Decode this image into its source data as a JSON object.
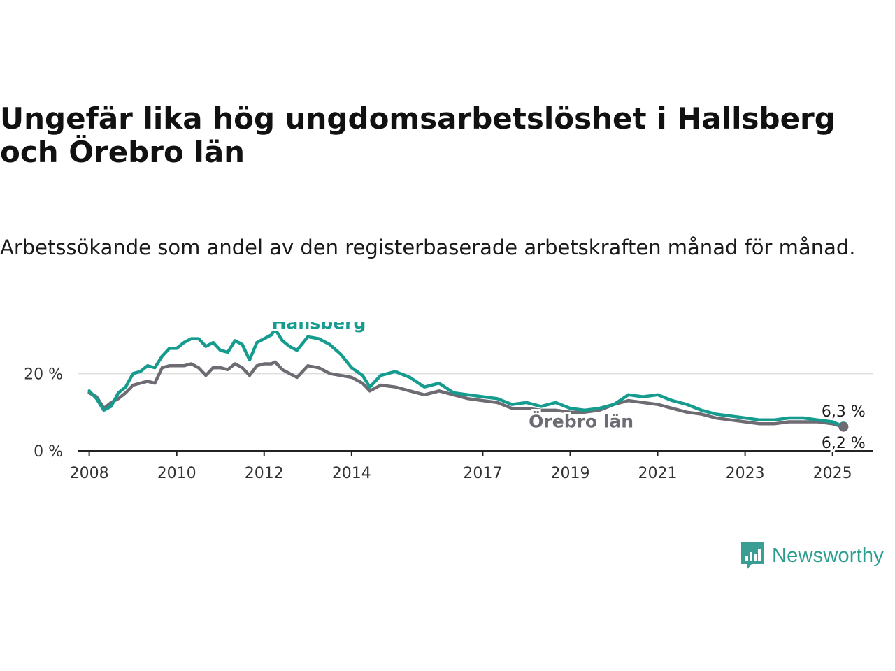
{
  "title": "Ungefär lika hög ungdomsarbetslöshet i Hallsberg och Örebro län",
  "subtitle": "Arbetssökande som andel av den registerbaserade arbetskraften månad för månad.",
  "logo": {
    "text": "Newsworthy",
    "icon": "newsworthy-chart-icon",
    "color": "#3a9e95"
  },
  "chart_data": {
    "type": "line",
    "x_ticks": [
      "2008",
      "2010",
      "2012",
      "2014",
      "2017",
      "2019",
      "2021",
      "2023",
      "2025"
    ],
    "y_ticks": [
      "0 %",
      "20 %"
    ],
    "ylim": [
      0,
      32
    ],
    "xlim": [
      "2007-10",
      "2025-12"
    ],
    "grid": true,
    "series": [
      {
        "name": "Hallsberg",
        "color": "#169c8f",
        "end_label": "6,3 %",
        "points": [
          [
            "2008-01",
            15.5
          ],
          [
            "2008-03",
            13.5
          ],
          [
            "2008-05",
            10.5
          ],
          [
            "2008-07",
            11.5
          ],
          [
            "2008-09",
            15.0
          ],
          [
            "2008-11",
            16.5
          ],
          [
            "2009-01",
            20.0
          ],
          [
            "2009-03",
            20.5
          ],
          [
            "2009-05",
            22.0
          ],
          [
            "2009-07",
            21.5
          ],
          [
            "2009-09",
            24.5
          ],
          [
            "2009-11",
            26.5
          ],
          [
            "2010-01",
            26.5
          ],
          [
            "2010-03",
            28.0
          ],
          [
            "2010-05",
            29.0
          ],
          [
            "2010-07",
            29.0
          ],
          [
            "2010-09",
            27.0
          ],
          [
            "2010-11",
            28.0
          ],
          [
            "2011-01",
            26.0
          ],
          [
            "2011-03",
            25.5
          ],
          [
            "2011-05",
            28.5
          ],
          [
            "2011-07",
            27.5
          ],
          [
            "2011-09",
            23.5
          ],
          [
            "2011-11",
            28.0
          ],
          [
            "2012-01",
            29.0
          ],
          [
            "2012-03",
            30.0
          ],
          [
            "2012-04",
            31.5
          ],
          [
            "2012-06",
            28.5
          ],
          [
            "2012-08",
            27.0
          ],
          [
            "2012-10",
            26.0
          ],
          [
            "2013-01",
            29.5
          ],
          [
            "2013-04",
            29.0
          ],
          [
            "2013-07",
            27.5
          ],
          [
            "2013-10",
            25.0
          ],
          [
            "2014-01",
            21.5
          ],
          [
            "2014-04",
            19.5
          ],
          [
            "2014-06",
            16.5
          ],
          [
            "2014-09",
            19.5
          ],
          [
            "2015-01",
            20.5
          ],
          [
            "2015-05",
            19.0
          ],
          [
            "2015-09",
            16.5
          ],
          [
            "2016-01",
            17.5
          ],
          [
            "2016-05",
            15.0
          ],
          [
            "2016-09",
            14.5
          ],
          [
            "2017-01",
            14.0
          ],
          [
            "2017-05",
            13.5
          ],
          [
            "2017-09",
            12.0
          ],
          [
            "2018-01",
            12.5
          ],
          [
            "2018-05",
            11.5
          ],
          [
            "2018-09",
            12.5
          ],
          [
            "2019-01",
            11.0
          ],
          [
            "2019-05",
            10.5
          ],
          [
            "2019-09",
            11.0
          ],
          [
            "2020-01",
            12.0
          ],
          [
            "2020-05",
            14.5
          ],
          [
            "2020-09",
            14.0
          ],
          [
            "2021-01",
            14.5
          ],
          [
            "2021-05",
            13.0
          ],
          [
            "2021-09",
            12.0
          ],
          [
            "2022-01",
            10.5
          ],
          [
            "2022-05",
            9.5
          ],
          [
            "2022-09",
            9.0
          ],
          [
            "2023-01",
            8.5
          ],
          [
            "2023-05",
            8.0
          ],
          [
            "2023-09",
            8.0
          ],
          [
            "2024-01",
            8.5
          ],
          [
            "2024-05",
            8.5
          ],
          [
            "2024-09",
            8.0
          ],
          [
            "2025-01",
            7.5
          ],
          [
            "2025-04",
            6.3
          ]
        ]
      },
      {
        "name": "Örebro län",
        "color": "#6e6b73",
        "end_label": "6,2 %",
        "points": [
          [
            "2008-01",
            15.0
          ],
          [
            "2008-03",
            14.0
          ],
          [
            "2008-05",
            11.0
          ],
          [
            "2008-07",
            12.5
          ],
          [
            "2008-09",
            13.5
          ],
          [
            "2008-11",
            15.0
          ],
          [
            "2009-01",
            17.0
          ],
          [
            "2009-03",
            17.5
          ],
          [
            "2009-05",
            18.0
          ],
          [
            "2009-07",
            17.5
          ],
          [
            "2009-09",
            21.5
          ],
          [
            "2009-11",
            22.0
          ],
          [
            "2010-01",
            22.0
          ],
          [
            "2010-03",
            22.0
          ],
          [
            "2010-05",
            22.5
          ],
          [
            "2010-07",
            21.5
          ],
          [
            "2010-09",
            19.5
          ],
          [
            "2010-11",
            21.5
          ],
          [
            "2011-01",
            21.5
          ],
          [
            "2011-03",
            21.0
          ],
          [
            "2011-05",
            22.5
          ],
          [
            "2011-07",
            21.5
          ],
          [
            "2011-09",
            19.5
          ],
          [
            "2011-11",
            22.0
          ],
          [
            "2012-01",
            22.5
          ],
          [
            "2012-03",
            22.5
          ],
          [
            "2012-04",
            23.0
          ],
          [
            "2012-06",
            21.0
          ],
          [
            "2012-08",
            20.0
          ],
          [
            "2012-10",
            19.0
          ],
          [
            "2013-01",
            22.0
          ],
          [
            "2013-04",
            21.5
          ],
          [
            "2013-07",
            20.0
          ],
          [
            "2013-10",
            19.5
          ],
          [
            "2014-01",
            19.0
          ],
          [
            "2014-04",
            17.5
          ],
          [
            "2014-06",
            15.5
          ],
          [
            "2014-09",
            17.0
          ],
          [
            "2015-01",
            16.5
          ],
          [
            "2015-05",
            15.5
          ],
          [
            "2015-09",
            14.5
          ],
          [
            "2016-01",
            15.5
          ],
          [
            "2016-05",
            14.5
          ],
          [
            "2016-09",
            13.5
          ],
          [
            "2017-01",
            13.0
          ],
          [
            "2017-05",
            12.5
          ],
          [
            "2017-09",
            11.0
          ],
          [
            "2018-01",
            11.0
          ],
          [
            "2018-05",
            10.5
          ],
          [
            "2018-09",
            10.5
          ],
          [
            "2019-01",
            10.0
          ],
          [
            "2019-05",
            10.0
          ],
          [
            "2019-09",
            10.5
          ],
          [
            "2020-01",
            12.0
          ],
          [
            "2020-05",
            13.0
          ],
          [
            "2020-09",
            12.5
          ],
          [
            "2021-01",
            12.0
          ],
          [
            "2021-05",
            11.0
          ],
          [
            "2021-09",
            10.0
          ],
          [
            "2022-01",
            9.5
          ],
          [
            "2022-05",
            8.5
          ],
          [
            "2022-09",
            8.0
          ],
          [
            "2023-01",
            7.5
          ],
          [
            "2023-05",
            7.0
          ],
          [
            "2023-09",
            7.0
          ],
          [
            "2024-01",
            7.5
          ],
          [
            "2024-05",
            7.5
          ],
          [
            "2024-09",
            7.5
          ],
          [
            "2025-01",
            7.0
          ],
          [
            "2025-04",
            6.2
          ]
        ]
      }
    ]
  }
}
